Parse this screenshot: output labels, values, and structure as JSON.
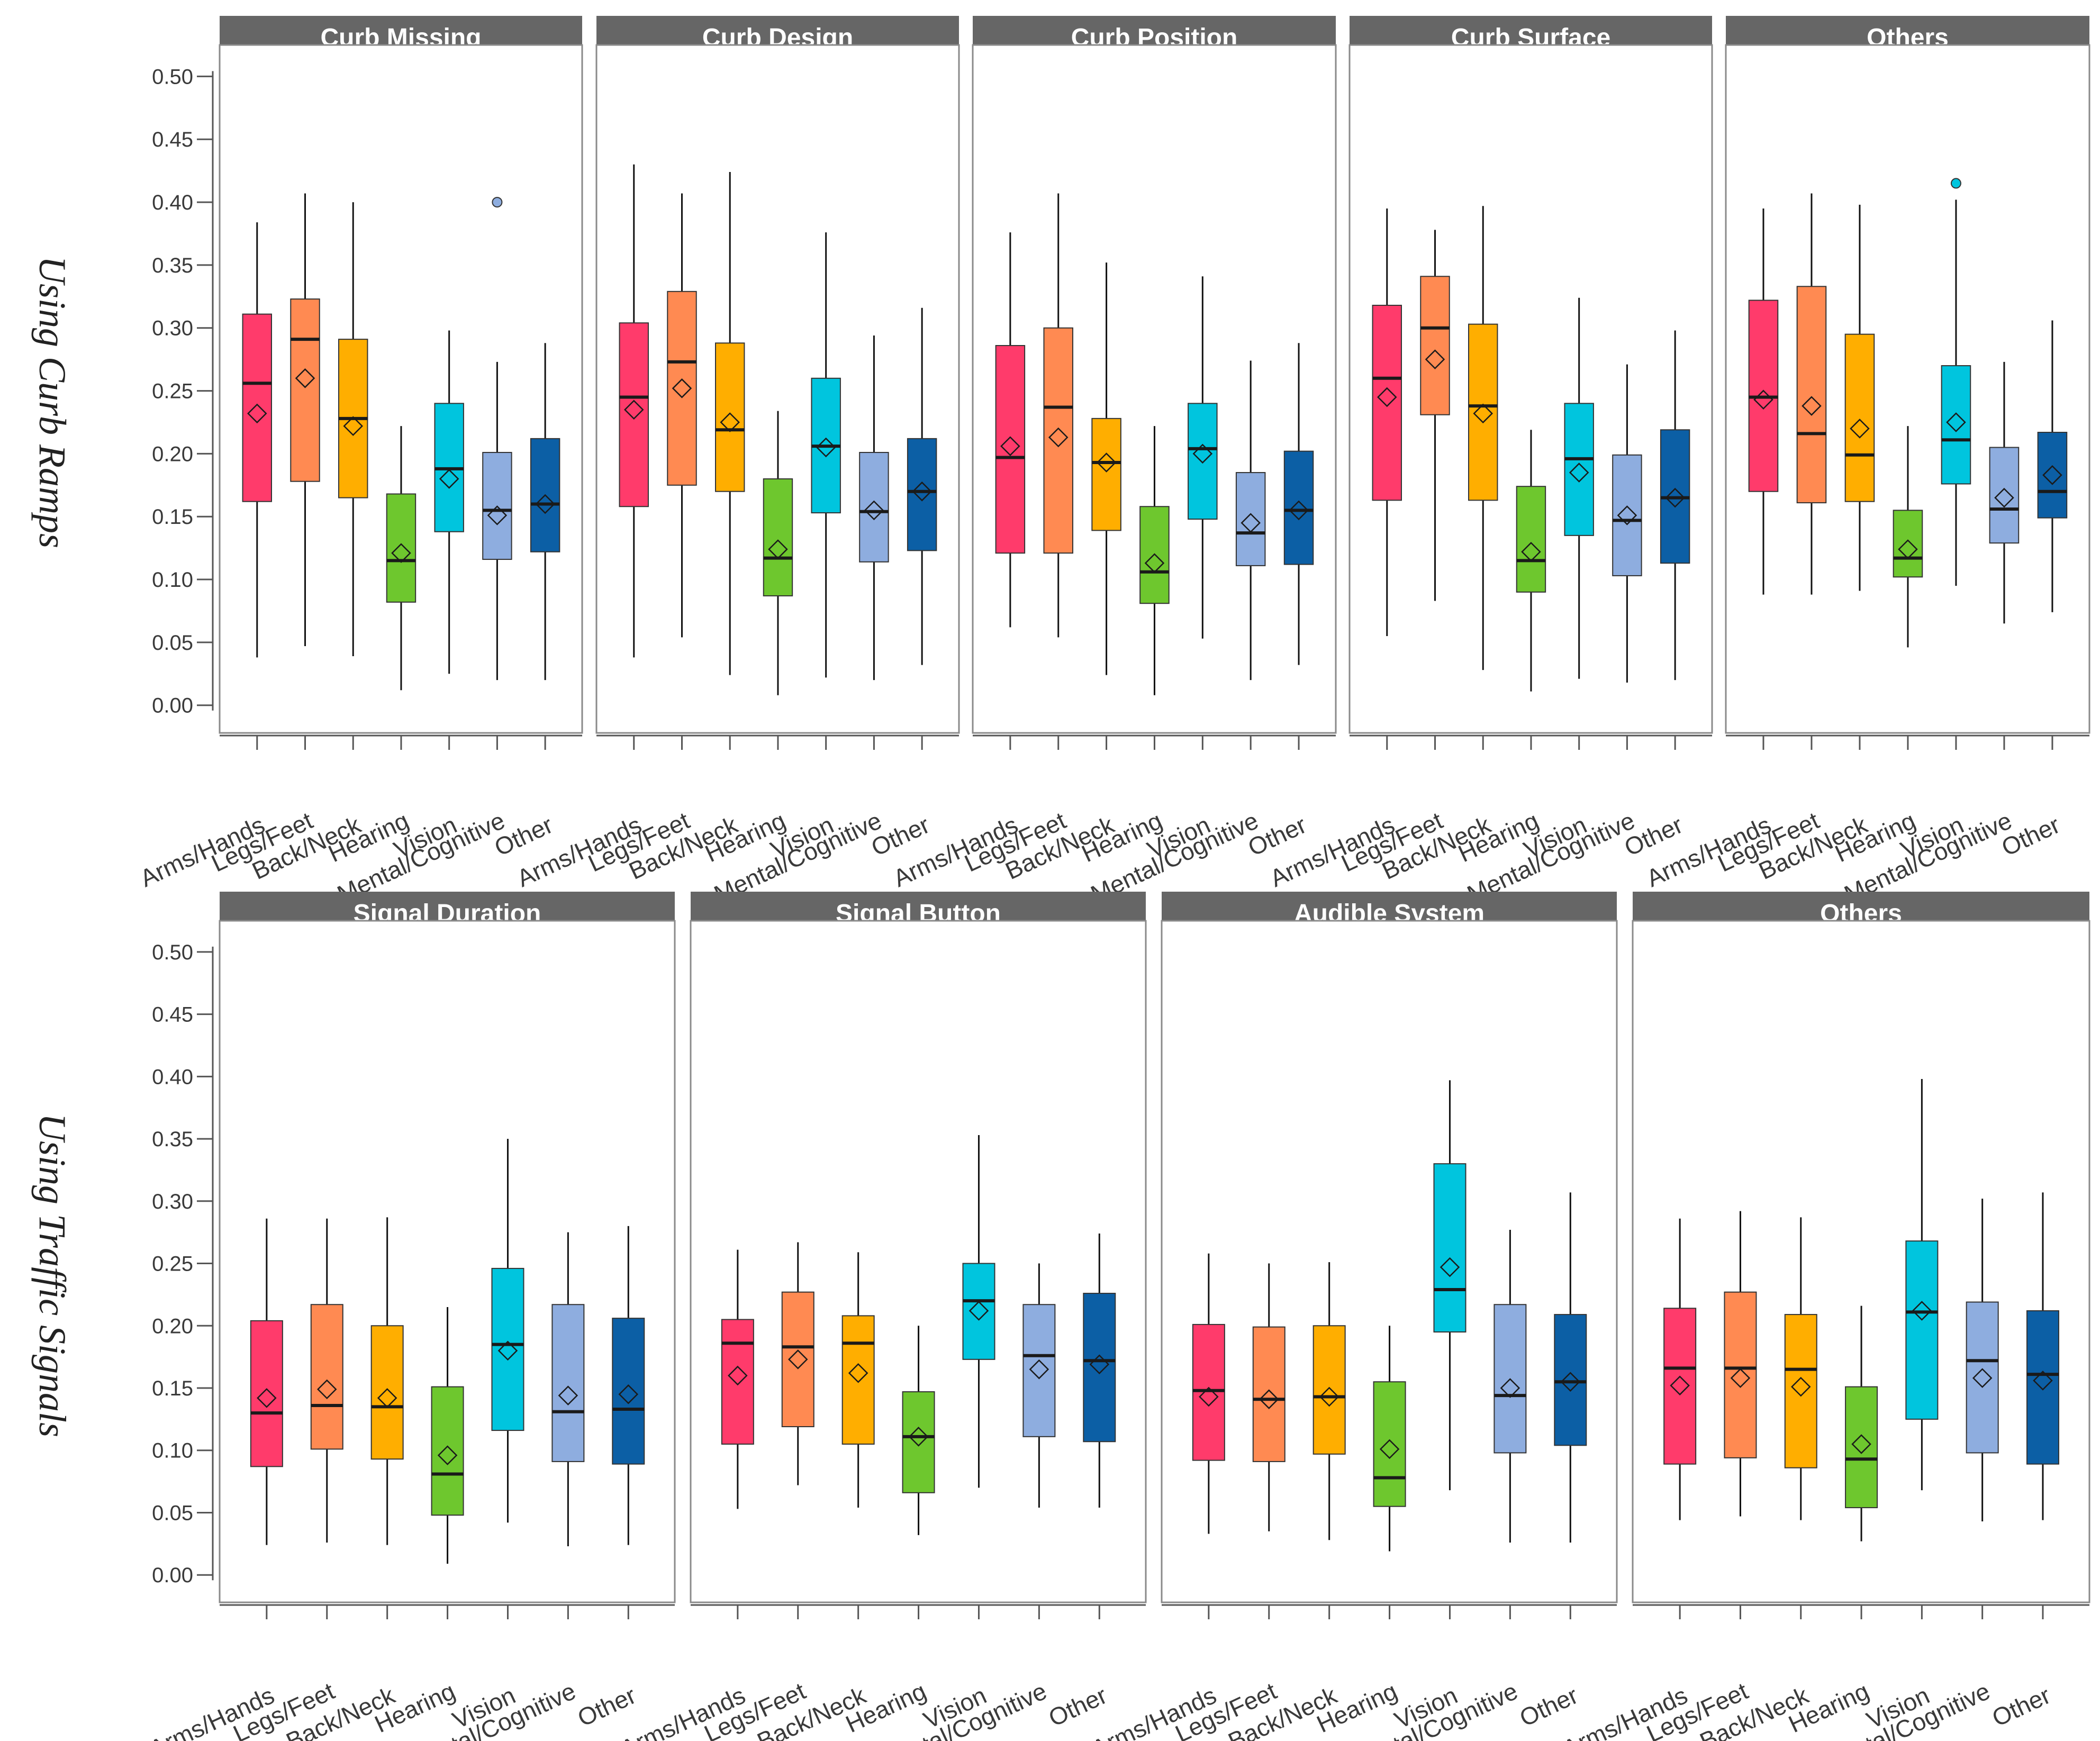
{
  "chart_data": {
    "type": "boxplot",
    "y_ticks": [
      "0.00",
      "0.05",
      "0.10",
      "0.15",
      "0.20",
      "0.25",
      "0.30",
      "0.35",
      "0.40",
      "0.45",
      "0.50"
    ],
    "ylim": [
      -0.022,
      0.525
    ],
    "categories": [
      "Arms/Hands",
      "Legs/Feet",
      "Back/Neck",
      "Hearing",
      "Vision",
      "Mental/Cognitive",
      "Other"
    ],
    "category_colors": [
      "#FF3B6B",
      "#FF8A52",
      "#FFAE00",
      "#6EC72E",
      "#00C5DE",
      "#8EADDF",
      "#0C5FA5"
    ],
    "rows": [
      {
        "title": "Using Curb Ramps",
        "panels": [
          {
            "title": "Curb Missing",
            "boxes": [
              {
                "low": 0.038,
                "q1": 0.162,
                "median": 0.256,
                "q3": 0.311,
                "high": 0.384,
                "mean": 0.232
              },
              {
                "low": 0.047,
                "q1": 0.178,
                "median": 0.291,
                "q3": 0.323,
                "high": 0.407,
                "mean": 0.26
              },
              {
                "low": 0.039,
                "q1": 0.165,
                "median": 0.228,
                "q3": 0.291,
                "high": 0.4,
                "mean": 0.222
              },
              {
                "low": 0.012,
                "q1": 0.082,
                "median": 0.115,
                "q3": 0.168,
                "high": 0.222,
                "mean": 0.121
              },
              {
                "low": 0.025,
                "q1": 0.138,
                "median": 0.188,
                "q3": 0.24,
                "high": 0.298,
                "mean": 0.18
              },
              {
                "low": 0.02,
                "q1": 0.116,
                "median": 0.155,
                "q3": 0.201,
                "high": 0.273,
                "mean": 0.151,
                "outliers": [
                  0.4
                ]
              },
              {
                "low": 0.02,
                "q1": 0.122,
                "median": 0.16,
                "q3": 0.212,
                "high": 0.288,
                "mean": 0.16
              }
            ]
          },
          {
            "title": "Curb Design",
            "boxes": [
              {
                "low": 0.038,
                "q1": 0.158,
                "median": 0.245,
                "q3": 0.304,
                "high": 0.43,
                "mean": 0.235
              },
              {
                "low": 0.054,
                "q1": 0.175,
                "median": 0.273,
                "q3": 0.329,
                "high": 0.407,
                "mean": 0.252
              },
              {
                "low": 0.024,
                "q1": 0.17,
                "median": 0.219,
                "q3": 0.288,
                "high": 0.424,
                "mean": 0.225
              },
              {
                "low": 0.008,
                "q1": 0.087,
                "median": 0.117,
                "q3": 0.18,
                "high": 0.234,
                "mean": 0.124
              },
              {
                "low": 0.022,
                "q1": 0.153,
                "median": 0.206,
                "q3": 0.26,
                "high": 0.376,
                "mean": 0.205
              },
              {
                "low": 0.02,
                "q1": 0.114,
                "median": 0.154,
                "q3": 0.201,
                "high": 0.294,
                "mean": 0.155
              },
              {
                "low": 0.032,
                "q1": 0.123,
                "median": 0.17,
                "q3": 0.212,
                "high": 0.316,
                "mean": 0.17
              }
            ]
          },
          {
            "title": "Curb Position",
            "boxes": [
              {
                "low": 0.062,
                "q1": 0.121,
                "median": 0.197,
                "q3": 0.286,
                "high": 0.376,
                "mean": 0.206
              },
              {
                "low": 0.054,
                "q1": 0.121,
                "median": 0.237,
                "q3": 0.3,
                "high": 0.407,
                "mean": 0.213
              },
              {
                "low": 0.024,
                "q1": 0.139,
                "median": 0.193,
                "q3": 0.228,
                "high": 0.352,
                "mean": 0.193
              },
              {
                "low": 0.008,
                "q1": 0.081,
                "median": 0.106,
                "q3": 0.158,
                "high": 0.222,
                "mean": 0.113
              },
              {
                "low": 0.053,
                "q1": 0.148,
                "median": 0.204,
                "q3": 0.24,
                "high": 0.341,
                "mean": 0.2
              },
              {
                "low": 0.02,
                "q1": 0.111,
                "median": 0.137,
                "q3": 0.185,
                "high": 0.274,
                "mean": 0.145
              },
              {
                "low": 0.032,
                "q1": 0.112,
                "median": 0.155,
                "q3": 0.202,
                "high": 0.288,
                "mean": 0.155
              }
            ]
          },
          {
            "title": "Curb Surface",
            "boxes": [
              {
                "low": 0.055,
                "q1": 0.163,
                "median": 0.26,
                "q3": 0.318,
                "high": 0.395,
                "mean": 0.245
              },
              {
                "low": 0.083,
                "q1": 0.231,
                "median": 0.3,
                "q3": 0.341,
                "high": 0.378,
                "mean": 0.275
              },
              {
                "low": 0.028,
                "q1": 0.163,
                "median": 0.238,
                "q3": 0.303,
                "high": 0.397,
                "mean": 0.232
              },
              {
                "low": 0.011,
                "q1": 0.09,
                "median": 0.115,
                "q3": 0.174,
                "high": 0.219,
                "mean": 0.122
              },
              {
                "low": 0.021,
                "q1": 0.135,
                "median": 0.196,
                "q3": 0.24,
                "high": 0.324,
                "mean": 0.185
              },
              {
                "low": 0.018,
                "q1": 0.103,
                "median": 0.147,
                "q3": 0.199,
                "high": 0.271,
                "mean": 0.151
              },
              {
                "low": 0.02,
                "q1": 0.113,
                "median": 0.165,
                "q3": 0.219,
                "high": 0.298,
                "mean": 0.165
              }
            ]
          },
          {
            "title": "Others",
            "boxes": [
              {
                "low": 0.088,
                "q1": 0.17,
                "median": 0.245,
                "q3": 0.322,
                "high": 0.395,
                "mean": 0.243
              },
              {
                "low": 0.088,
                "q1": 0.161,
                "median": 0.216,
                "q3": 0.333,
                "high": 0.407,
                "mean": 0.238
              },
              {
                "low": 0.091,
                "q1": 0.162,
                "median": 0.199,
                "q3": 0.295,
                "high": 0.398,
                "mean": 0.22
              },
              {
                "low": 0.046,
                "q1": 0.102,
                "median": 0.117,
                "q3": 0.155,
                "high": 0.222,
                "mean": 0.124
              },
              {
                "low": 0.095,
                "q1": 0.176,
                "median": 0.211,
                "q3": 0.27,
                "high": 0.402,
                "mean": 0.225,
                "outliers": [
                  0.415
                ]
              },
              {
                "low": 0.065,
                "q1": 0.129,
                "median": 0.156,
                "q3": 0.205,
                "high": 0.273,
                "mean": 0.165
              },
              {
                "low": 0.074,
                "q1": 0.149,
                "median": 0.17,
                "q3": 0.217,
                "high": 0.306,
                "mean": 0.183
              }
            ]
          }
        ]
      },
      {
        "title": "Using Traffic Signals",
        "panels": [
          {
            "title": "Signal Duration",
            "boxes": [
              {
                "low": 0.024,
                "q1": 0.087,
                "median": 0.13,
                "q3": 0.204,
                "high": 0.286,
                "mean": 0.142
              },
              {
                "low": 0.026,
                "q1": 0.101,
                "median": 0.136,
                "q3": 0.217,
                "high": 0.286,
                "mean": 0.149
              },
              {
                "low": 0.024,
                "q1": 0.093,
                "median": 0.135,
                "q3": 0.2,
                "high": 0.287,
                "mean": 0.142
              },
              {
                "low": 0.009,
                "q1": 0.048,
                "median": 0.081,
                "q3": 0.151,
                "high": 0.215,
                "mean": 0.096
              },
              {
                "low": 0.042,
                "q1": 0.116,
                "median": 0.185,
                "q3": 0.246,
                "high": 0.35,
                "mean": 0.18
              },
              {
                "low": 0.023,
                "q1": 0.091,
                "median": 0.131,
                "q3": 0.217,
                "high": 0.275,
                "mean": 0.144
              },
              {
                "low": 0.024,
                "q1": 0.089,
                "median": 0.133,
                "q3": 0.206,
                "high": 0.28,
                "mean": 0.145
              }
            ]
          },
          {
            "title": "Signal Button",
            "boxes": [
              {
                "low": 0.053,
                "q1": 0.105,
                "median": 0.186,
                "q3": 0.205,
                "high": 0.261,
                "mean": 0.16
              },
              {
                "low": 0.072,
                "q1": 0.119,
                "median": 0.183,
                "q3": 0.227,
                "high": 0.267,
                "mean": 0.173
              },
              {
                "low": 0.054,
                "q1": 0.105,
                "median": 0.186,
                "q3": 0.208,
                "high": 0.259,
                "mean": 0.162
              },
              {
                "low": 0.032,
                "q1": 0.066,
                "median": 0.111,
                "q3": 0.147,
                "high": 0.2,
                "mean": 0.111
              },
              {
                "low": 0.07,
                "q1": 0.173,
                "median": 0.22,
                "q3": 0.25,
                "high": 0.353,
                "mean": 0.212
              },
              {
                "low": 0.054,
                "q1": 0.111,
                "median": 0.176,
                "q3": 0.217,
                "high": 0.25,
                "mean": 0.165
              },
              {
                "low": 0.054,
                "q1": 0.107,
                "median": 0.172,
                "q3": 0.226,
                "high": 0.274,
                "mean": 0.169
              }
            ]
          },
          {
            "title": "Audible System",
            "boxes": [
              {
                "low": 0.033,
                "q1": 0.092,
                "median": 0.148,
                "q3": 0.201,
                "high": 0.258,
                "mean": 0.143
              },
              {
                "low": 0.035,
                "q1": 0.091,
                "median": 0.141,
                "q3": 0.199,
                "high": 0.25,
                "mean": 0.141
              },
              {
                "low": 0.028,
                "q1": 0.097,
                "median": 0.143,
                "q3": 0.2,
                "high": 0.251,
                "mean": 0.143
              },
              {
                "low": 0.019,
                "q1": 0.055,
                "median": 0.078,
                "q3": 0.155,
                "high": 0.2,
                "mean": 0.101
              },
              {
                "low": 0.068,
                "q1": 0.195,
                "median": 0.229,
                "q3": 0.33,
                "high": 0.397,
                "mean": 0.247
              },
              {
                "low": 0.026,
                "q1": 0.098,
                "median": 0.144,
                "q3": 0.217,
                "high": 0.277,
                "mean": 0.15
              },
              {
                "low": 0.026,
                "q1": 0.104,
                "median": 0.155,
                "q3": 0.209,
                "high": 0.307,
                "mean": 0.155
              }
            ]
          },
          {
            "title": "Others",
            "boxes": [
              {
                "low": 0.044,
                "q1": 0.089,
                "median": 0.166,
                "q3": 0.214,
                "high": 0.286,
                "mean": 0.152
              },
              {
                "low": 0.047,
                "q1": 0.094,
                "median": 0.166,
                "q3": 0.227,
                "high": 0.292,
                "mean": 0.158
              },
              {
                "low": 0.044,
                "q1": 0.086,
                "median": 0.165,
                "q3": 0.209,
                "high": 0.287,
                "mean": 0.151
              },
              {
                "low": 0.027,
                "q1": 0.054,
                "median": 0.093,
                "q3": 0.151,
                "high": 0.216,
                "mean": 0.105
              },
              {
                "low": 0.068,
                "q1": 0.125,
                "median": 0.211,
                "q3": 0.268,
                "high": 0.398,
                "mean": 0.212
              },
              {
                "low": 0.043,
                "q1": 0.098,
                "median": 0.172,
                "q3": 0.219,
                "high": 0.302,
                "mean": 0.158
              },
              {
                "low": 0.044,
                "q1": 0.089,
                "median": 0.161,
                "q3": 0.212,
                "high": 0.307,
                "mean": 0.156
              }
            ]
          }
        ]
      }
    ]
  }
}
